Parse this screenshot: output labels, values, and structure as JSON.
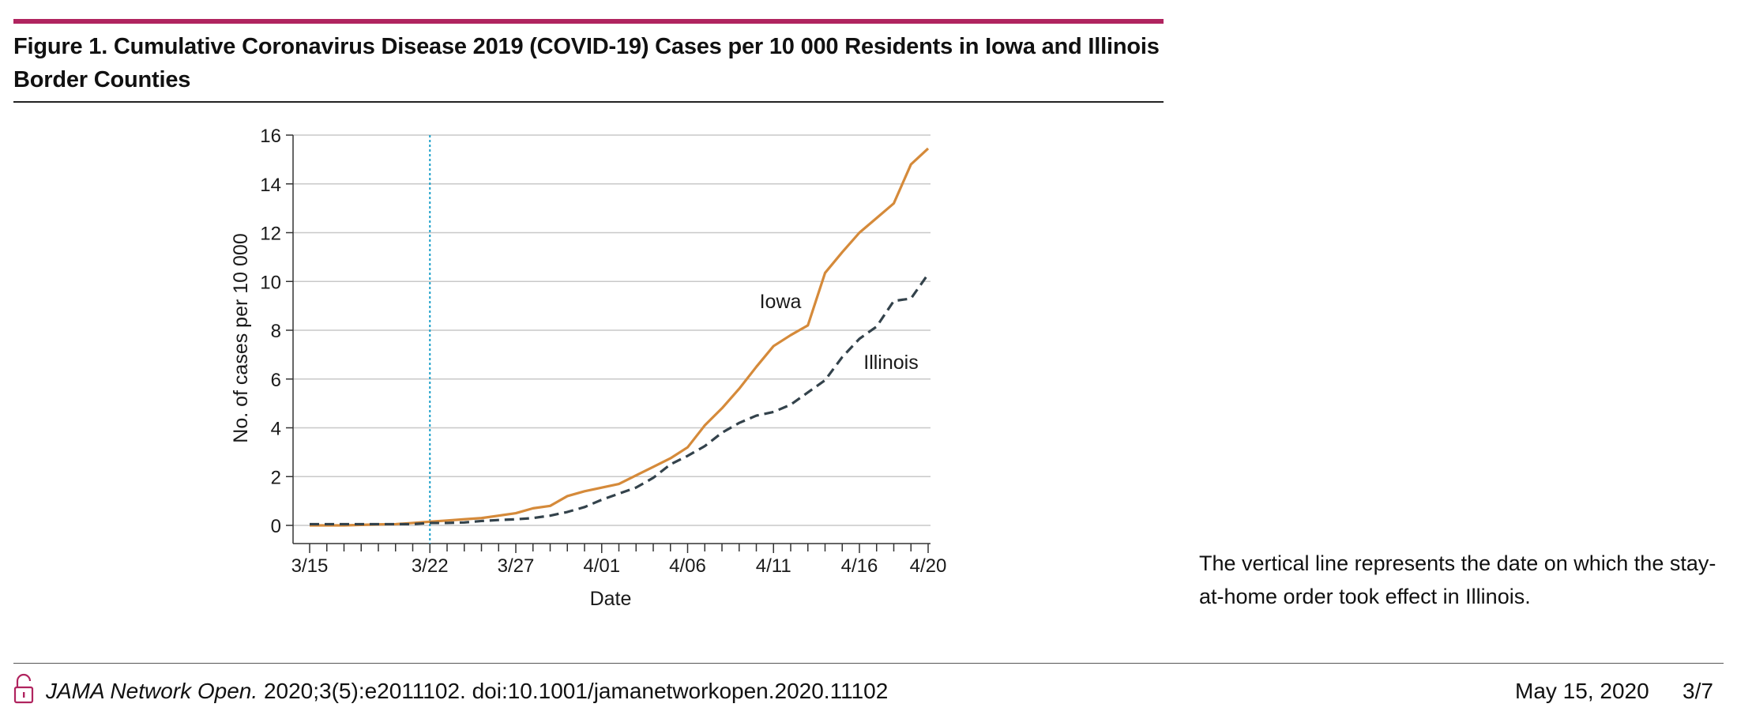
{
  "figure": {
    "title": "Figure 1. Cumulative Coronavirus Disease 2019 (COVID-19) Cases per 10 000 Residents in Iowa and Illinois Border Counties",
    "accent_color": "#b0245f",
    "caption": "The vertical line represents the date on which the stay-at-home order took effect in Illinois."
  },
  "chart_data": {
    "type": "line",
    "title": "",
    "xlabel": "Date",
    "ylabel": "No. of cases per 10 000",
    "ylim": [
      0,
      16
    ],
    "yticks": [
      0,
      2,
      4,
      6,
      8,
      10,
      12,
      14,
      16
    ],
    "x_tick_labels": [
      "3/15",
      "3/22",
      "3/27",
      "4/01",
      "4/06",
      "4/11",
      "4/16",
      "4/20"
    ],
    "x": [
      "3/15",
      "3/16",
      "3/17",
      "3/18",
      "3/19",
      "3/20",
      "3/21",
      "3/22",
      "3/23",
      "3/24",
      "3/25",
      "3/26",
      "3/27",
      "3/28",
      "3/29",
      "3/30",
      "3/31",
      "4/01",
      "4/02",
      "4/03",
      "4/04",
      "4/05",
      "4/06",
      "4/07",
      "4/08",
      "4/09",
      "4/10",
      "4/11",
      "4/12",
      "4/13",
      "4/14",
      "4/15",
      "4/16",
      "4/17",
      "4/18",
      "4/19",
      "4/20"
    ],
    "grid": true,
    "legend": "none",
    "reference_line": {
      "x": "3/22",
      "style": "dotted",
      "color": "#1a9fc9"
    },
    "series": [
      {
        "name": "Iowa",
        "color": "#d58a3a",
        "style": "solid",
        "values": [
          0,
          0,
          0,
          0.02,
          0.04,
          0.05,
          0.1,
          0.15,
          0.2,
          0.25,
          0.3,
          0.4,
          0.5,
          0.7,
          0.8,
          1.2,
          1.4,
          1.55,
          1.7,
          2.05,
          2.4,
          2.75,
          3.2,
          4.1,
          4.8,
          5.6,
          6.5,
          7.35,
          7.8,
          8.2,
          10.35,
          11.2,
          12.0,
          12.6,
          13.2,
          14.8,
          15.45
        ]
      },
      {
        "name": "Illinois",
        "color": "#33424b",
        "style": "dashed",
        "values": [
          0.05,
          0.05,
          0.05,
          0.05,
          0.05,
          0.05,
          0.05,
          0.1,
          0.1,
          0.12,
          0.18,
          0.22,
          0.25,
          0.3,
          0.4,
          0.55,
          0.75,
          1.05,
          1.3,
          1.55,
          1.95,
          2.5,
          2.85,
          3.25,
          3.8,
          4.2,
          4.5,
          4.65,
          4.95,
          5.45,
          5.95,
          6.9,
          7.65,
          8.15,
          9.2,
          9.3,
          10.3
        ]
      }
    ]
  },
  "footer": {
    "journal": "JAMA Network Open.",
    "citation": " 2020;3(5):e2011102. doi:10.1001/jamanetworkopen.2020.11102",
    "date": "May 15, 2020",
    "page": "3/7",
    "lock_icon": "open-lock-icon"
  }
}
